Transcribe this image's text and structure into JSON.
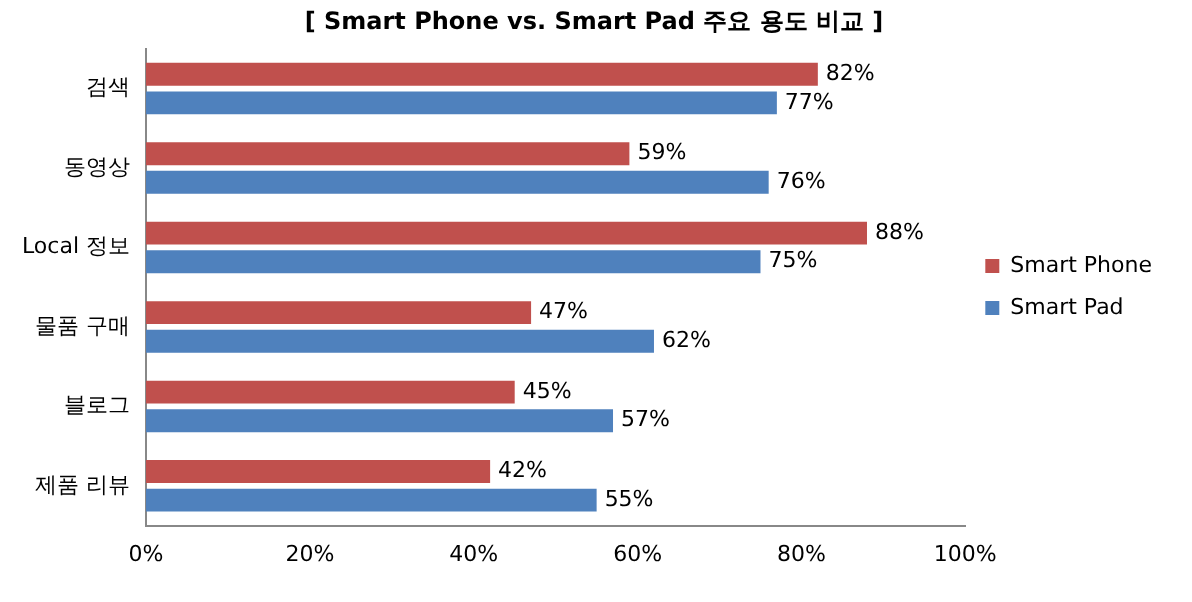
{
  "chart_data": {
    "type": "bar",
    "orientation": "horizontal",
    "title": "[ Smart Phone vs. Smart Pad 주요 용도 비교 ]",
    "categories": [
      "검색",
      "동영상",
      "Local 정보",
      "물품 구매",
      "블로그",
      "제품 리뷰"
    ],
    "series": [
      {
        "name": "Smart Phone",
        "color": "#c0504d",
        "values": [
          82,
          59,
          88,
          47,
          45,
          42
        ],
        "value_labels": [
          "82%",
          "59%",
          "88%",
          "47%",
          "45%",
          "42%"
        ]
      },
      {
        "name": "Smart Pad",
        "color": "#4f81bd",
        "values": [
          77,
          76,
          75,
          62,
          57,
          55
        ],
        "value_labels": [
          "77%",
          "76%",
          "75%",
          "62%",
          "57%",
          "55%"
        ]
      }
    ],
    "xlim": [
      0,
      100
    ],
    "xticks": [
      {
        "value": 0,
        "label": "0%"
      },
      {
        "value": 20,
        "label": "20%"
      },
      {
        "value": 40,
        "label": "40%"
      },
      {
        "value": 60,
        "label": "60%"
      },
      {
        "value": 80,
        "label": "80%"
      },
      {
        "value": 100,
        "label": "100%"
      }
    ],
    "legend": "right"
  }
}
